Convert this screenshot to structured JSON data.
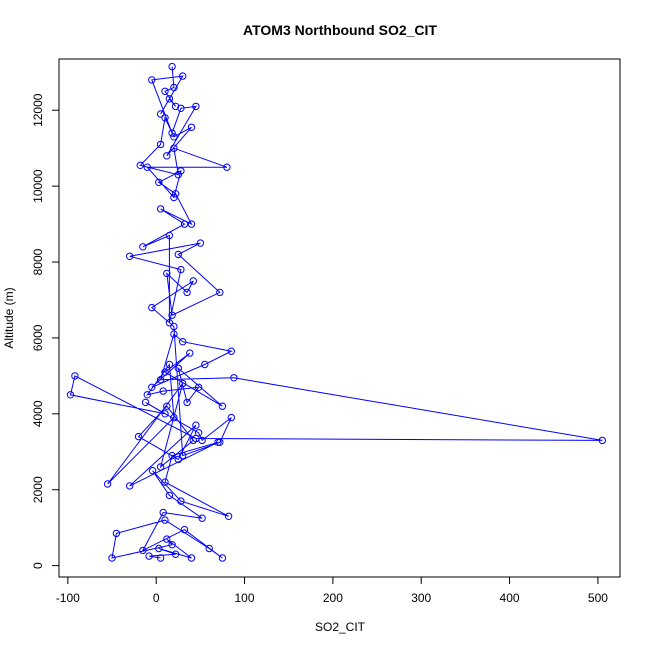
{
  "chart_data": {
    "type": "line",
    "title": "ATOM3 Northbound SO2_CIT",
    "xlabel": "SO2_CIT",
    "ylabel": "Altitude (m)",
    "xlim": [
      -110,
      525
    ],
    "ylim": [
      -300,
      13350
    ],
    "xticks": [
      -100,
      0,
      100,
      200,
      300,
      400,
      500
    ],
    "yticks": [
      0,
      2000,
      4000,
      6000,
      8000,
      10000,
      12000
    ],
    "colors": {
      "series": "#0000ff",
      "axis": "#000000",
      "background": "#ffffff"
    },
    "grid": false,
    "markers": "open-circle",
    "series": [
      {
        "x": [
          5,
          -8,
          22,
          3,
          40,
          12,
          18,
          -50,
          -45,
          10,
          60,
          75,
          32,
          -15,
          8,
          52,
          15,
          -4,
          28,
          82,
          10,
          18,
          70,
          -30,
          45,
          25,
          -20,
          12,
          42,
          5,
          30,
          -55,
          20,
          15,
          -10,
          8,
          48,
          35,
          25,
          75,
          10,
          38,
          -5,
          55,
          85,
          30,
          20,
          5,
          88,
          505,
          45,
          -92,
          -97,
          10,
          -12,
          48,
          52,
          85,
          72,
          30,
          20,
          -5,
          42,
          35,
          12,
          18,
          72,
          25,
          50,
          -30,
          28,
          15,
          15,
          -15,
          32,
          5,
          40,
          22,
          3,
          28,
          20,
          -10,
          80,
          20,
          25,
          -18,
          5,
          10,
          20,
          40,
          12,
          45,
          28,
          18,
          -5,
          30,
          5,
          15,
          22,
          10,
          20,
          18
        ],
        "y": [
          200,
          250,
          300,
          450,
          200,
          700,
          550,
          200,
          850,
          1200,
          450,
          200,
          950,
          400,
          1400,
          1250,
          1850,
          2500,
          1700,
          1300,
          2200,
          2900,
          3250,
          2100,
          3700,
          2800,
          3400,
          4200,
          3300,
          2600,
          4800,
          2150,
          3900,
          5300,
          4500,
          4600,
          4700,
          4300,
          5200,
          4200,
          5100,
          5600,
          4700,
          5300,
          5650,
          5900,
          6100,
          4900,
          4950,
          3300,
          3350,
          5000,
          4500,
          4000,
          4300,
          3500,
          3300,
          3900,
          3250,
          2900,
          6300,
          6800,
          7500,
          7200,
          7700,
          6600,
          7200,
          8200,
          8500,
          8150,
          7800,
          6400,
          8700,
          8400,
          9000,
          9400,
          9000,
          9800,
          10100,
          10400,
          9700,
          10500,
          10500,
          11000,
          10300,
          10550,
          11100,
          11800,
          11300,
          11550,
          10800,
          12100,
          12050,
          11400,
          12800,
          12900,
          11900,
          12300,
          12100,
          12500,
          12600,
          13150
        ]
      }
    ]
  }
}
